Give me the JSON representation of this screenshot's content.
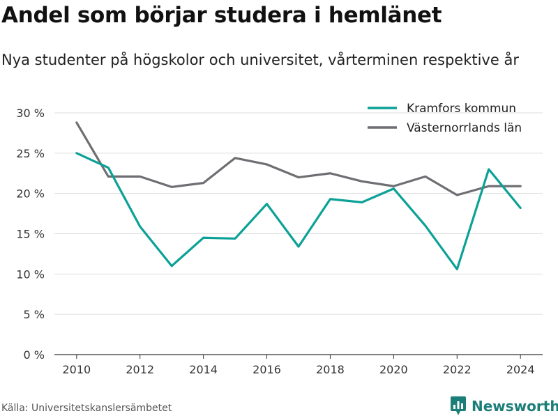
{
  "title": "Andel som börjar studera i hemlänet",
  "subtitle": "Nya studenter på högskolor och universitet, vårterminen respektive år",
  "source": "Källa: Universitetskanslersämbetet",
  "brand": "Newsworthy",
  "colors": {
    "kramfors": "#0ca197",
    "lan": "#6e6e73",
    "grid": "#dddddd",
    "brand": "#1c7e78"
  },
  "chart_data": {
    "type": "line",
    "x": [
      2010,
      2011,
      2012,
      2013,
      2014,
      2015,
      2016,
      2017,
      2018,
      2019,
      2020,
      2021,
      2022,
      2023,
      2024
    ],
    "xticks": [
      2010,
      2012,
      2014,
      2016,
      2018,
      2020,
      2022,
      2024
    ],
    "xlim": [
      2009.3,
      2024.7
    ],
    "ylim": [
      0,
      30
    ],
    "yticks": [
      0,
      5,
      10,
      15,
      20,
      25,
      30
    ],
    "ytick_labels": [
      "0 %",
      "5 %",
      "10 %",
      "15 %",
      "20 %",
      "25 %",
      "30 %"
    ],
    "grid": true,
    "legend": "top-right",
    "series": [
      {
        "name": "Kramfors kommun",
        "color": "#0ca197",
        "values": [
          25.0,
          23.2,
          15.9,
          11.0,
          14.5,
          14.4,
          18.7,
          13.4,
          19.3,
          18.9,
          20.6,
          16.0,
          10.6,
          23.0,
          18.2
        ]
      },
      {
        "name": "Västernorrlands län",
        "color": "#6e6e73",
        "values": [
          28.8,
          22.1,
          22.1,
          20.8,
          21.3,
          24.4,
          23.6,
          22.0,
          22.5,
          21.5,
          20.9,
          22.1,
          19.8,
          20.9,
          20.9
        ]
      }
    ]
  }
}
